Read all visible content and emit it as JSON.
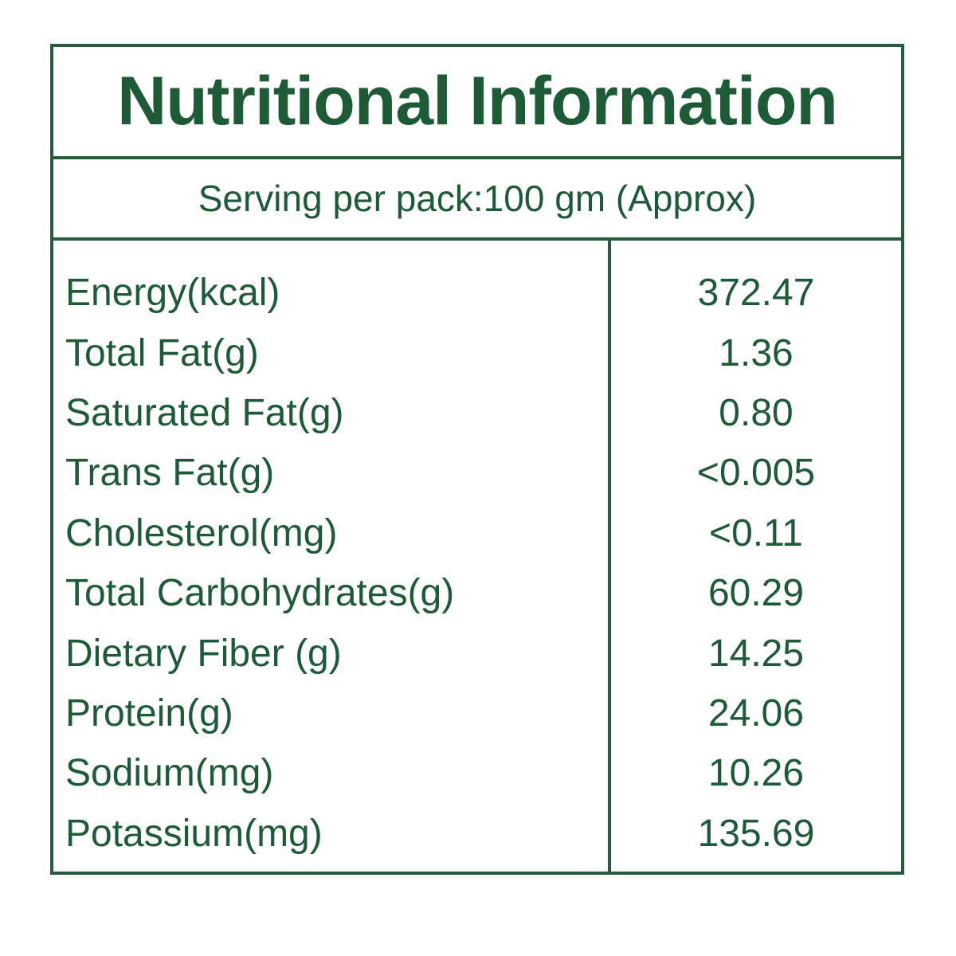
{
  "label": {
    "title": "Nutritional Information",
    "serving": "Serving per pack:100 gm (Approx)",
    "colors": {
      "text_green": "#1d5a36",
      "border_green": "#265c3d",
      "background": "#ffffff"
    },
    "table": {
      "rows": [
        {
          "label": "Energy(kcal)",
          "value": "372.47"
        },
        {
          "label": "Total Fat(g)",
          "value": "1.36"
        },
        {
          "label": "Saturated Fat(g)",
          "value": "0.80"
        },
        {
          "label": "Trans Fat(g)",
          "value": "<0.005"
        },
        {
          "label": "Cholesterol(mg)",
          "value": "<0.11"
        },
        {
          "label": "Total Carbohydrates(g)",
          "value": "60.29"
        },
        {
          "label": "Dietary Fiber (g)",
          "value": "14.25"
        },
        {
          "label": "Protein(g)",
          "value": "24.06"
        },
        {
          "label": "Sodium(mg)",
          "value": "10.26"
        },
        {
          "label": "Potassium(mg)",
          "value": "135.69"
        }
      ]
    }
  }
}
